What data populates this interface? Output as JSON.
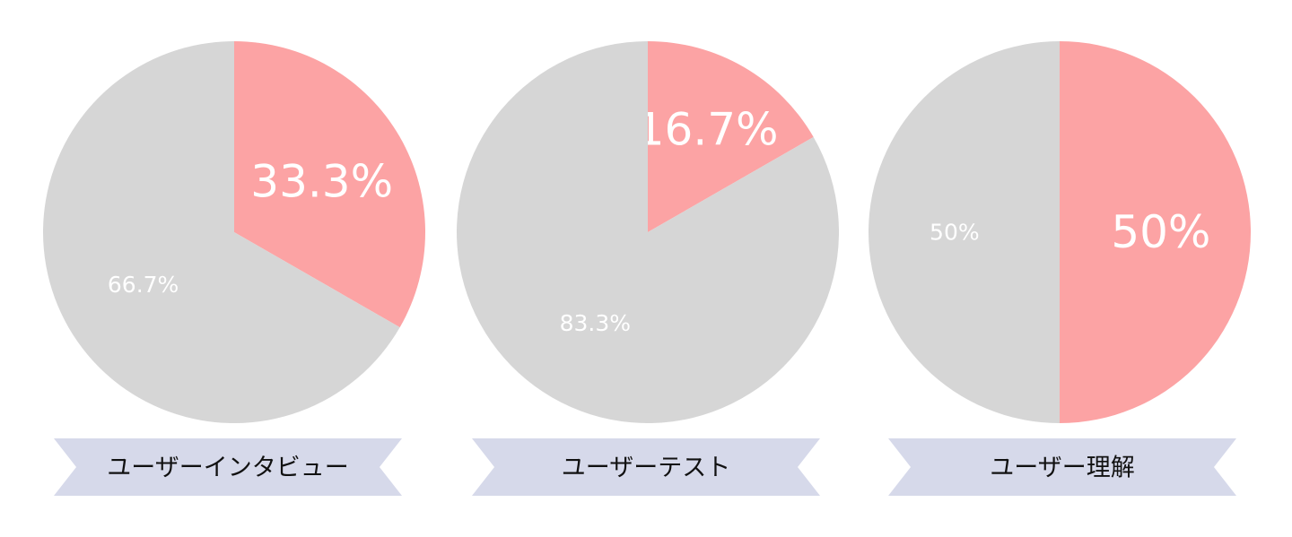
{
  "chart_data": [
    {
      "type": "pie",
      "title": "ユーザーインタビュー",
      "slices": [
        {
          "label": "33.3%",
          "value": 33.3,
          "color": "#fca3a4"
        },
        {
          "label": "66.7%",
          "value": 66.7,
          "color": "#d6d6d6"
        }
      ]
    },
    {
      "type": "pie",
      "title": "ユーザーテスト",
      "slices": [
        {
          "label": "16.7%",
          "value": 16.7,
          "color": "#fca3a4"
        },
        {
          "label": "83.3%",
          "value": 83.3,
          "color": "#d6d6d6"
        }
      ]
    },
    {
      "type": "pie",
      "title": "ユーザー理解",
      "slices": [
        {
          "label": "50%",
          "value": 50,
          "color": "#fca3a4"
        },
        {
          "label": "50%",
          "value": 50,
          "color": "#d6d6d6"
        }
      ]
    }
  ],
  "colors": {
    "ribbon": "#d6d9ea",
    "highlight": "#fca3a4",
    "rest": "#d6d6d6"
  }
}
